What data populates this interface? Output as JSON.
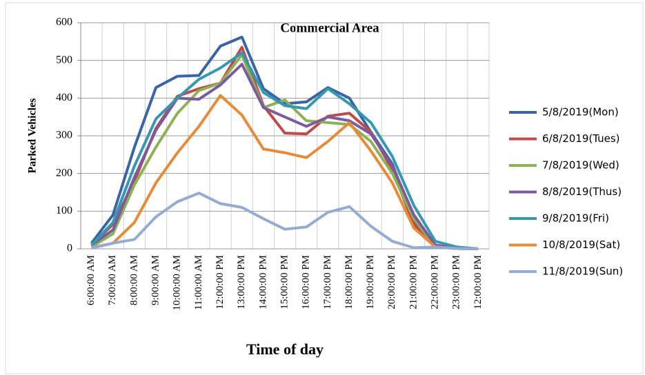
{
  "chart_data": {
    "type": "line",
    "title": "Commercial Area",
    "x_label": "Time  of  day",
    "y_label": "Parked Vehicles",
    "categories": [
      "6:00:00 AM",
      "7:00:00 AM",
      "8:00:00 AM",
      "9:00:00 AM",
      "10:00:00 AM",
      "11:00:00 AM",
      "12:00:00 PM",
      "13:00:00 PM",
      "14:00:00 PM",
      "15:00:00 PM",
      "16:00:00 PM",
      "17:00:00 PM",
      "18:00:00 PM",
      "19:00:00 PM",
      "20:00:00 PM",
      "21:00:00 PM",
      "22:00:00 PM",
      "23:00:00 PM",
      "12:00:00 PM"
    ],
    "series": [
      {
        "name": "5/8/2019(Mon)",
        "color": "#3b64a4",
        "values": [
          15,
          90,
          270,
          428,
          458,
          460,
          538,
          562,
          425,
          385,
          390,
          428,
          400,
          310,
          225,
          75,
          10,
          2,
          0
        ]
      },
      {
        "name": "6/8/2019(Tues)",
        "color": "#be4b48",
        "values": [
          10,
          65,
          180,
          320,
          405,
          425,
          440,
          535,
          380,
          307,
          305,
          352,
          360,
          310,
          210,
          65,
          5,
          1,
          0
        ]
      },
      {
        "name": "7/8/2019(Wed)",
        "color": "#8db255",
        "values": [
          5,
          40,
          170,
          270,
          360,
          420,
          440,
          515,
          375,
          395,
          340,
          335,
          330,
          285,
          200,
          80,
          5,
          1,
          0
        ]
      },
      {
        "name": "8/8/2019(Thus)",
        "color": "#7b5a9e",
        "values": [
          10,
          50,
          190,
          315,
          400,
          397,
          435,
          490,
          375,
          350,
          325,
          350,
          340,
          305,
          220,
          90,
          10,
          1,
          0
        ]
      },
      {
        "name": "9/8/2019(Fri)",
        "color": "#3598b0",
        "values": [
          10,
          70,
          220,
          345,
          400,
          450,
          480,
          520,
          415,
          380,
          372,
          425,
          385,
          335,
          245,
          115,
          20,
          5,
          0
        ]
      },
      {
        "name": "10/8/2019(Sat)",
        "color": "#e88b38",
        "values": [
          3,
          15,
          70,
          175,
          255,
          325,
          407,
          355,
          265,
          255,
          242,
          285,
          335,
          260,
          175,
          55,
          5,
          1,
          0
        ]
      },
      {
        "name": "11/8/2019(Sun)",
        "color": "#94acd4",
        "values": [
          2,
          15,
          25,
          85,
          125,
          148,
          120,
          110,
          80,
          52,
          58,
          97,
          112,
          60,
          20,
          3,
          5,
          1,
          0
        ]
      }
    ],
    "ylim": [
      0,
      600
    ],
    "yticks": [
      0,
      100,
      200,
      300,
      400,
      500,
      600
    ],
    "grid": true,
    "legend": "right"
  }
}
